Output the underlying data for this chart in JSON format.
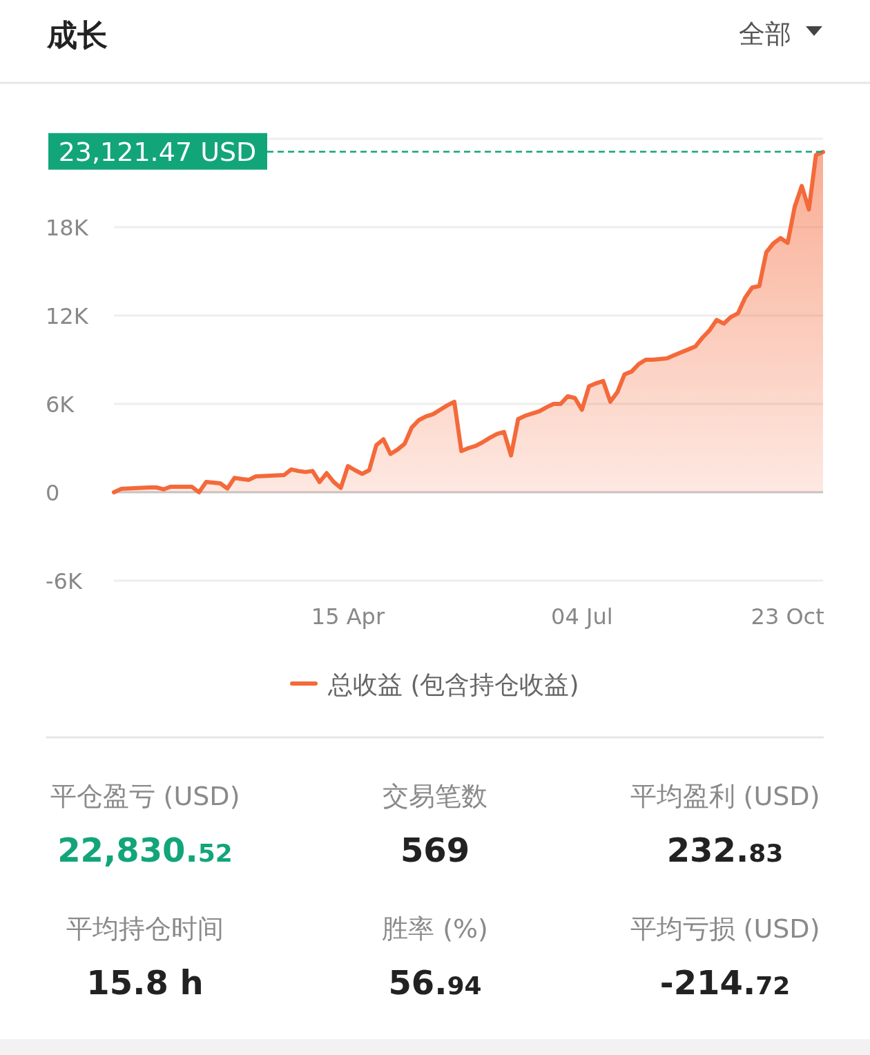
{
  "chart_data": [
    {
      "type": "area",
      "title": "成长",
      "annotations": [
        "全部"
      ],
      "categories": [
        null,
        null,
        null,
        null,
        null,
        null,
        null,
        null,
        null,
        null,
        null,
        null,
        null,
        null,
        null,
        null,
        null,
        null,
        null,
        null,
        null,
        null,
        null,
        null,
        null,
        null,
        null,
        null,
        null,
        null,
        null,
        null,
        null,
        "15 Apr",
        null,
        null,
        null,
        null,
        null,
        null,
        null,
        null,
        null,
        null,
        null,
        null,
        null,
        null,
        null,
        null,
        null,
        null,
        null,
        null,
        null,
        null,
        null,
        null,
        null,
        null,
        null,
        null,
        null,
        null,
        null,
        null,
        "04 Jul",
        null,
        null,
        null,
        null,
        null,
        null,
        null,
        null,
        null,
        null,
        null,
        null,
        null,
        null,
        null,
        null,
        null,
        null,
        null,
        null,
        null,
        null,
        null,
        null,
        null,
        null,
        null,
        null,
        "23 Oct",
        null,
        null,
        null,
        null,
        null
      ],
      "series": [
        {
          "name": "总收益 (包含持仓收益)",
          "color": "#f4693a",
          "values": [
            0,
            230,
            260,
            280,
            300,
            330,
            330,
            200,
            380,
            380,
            380,
            370,
            0,
            700,
            660,
            610,
            250,
            980,
            900,
            840,
            1080,
            1100,
            1130,
            1150,
            1170,
            1550,
            1450,
            1380,
            1450,
            700,
            1300,
            700,
            300,
            1780,
            1500,
            1250,
            1500,
            3200,
            3600,
            2600,
            2900,
            3300,
            4400,
            4900,
            5150,
            5300,
            5600,
            5900,
            6150,
            2800,
            3000,
            3150,
            3400,
            3700,
            3950,
            4100,
            2500,
            4970,
            5200,
            5350,
            5500,
            5770,
            6000,
            6000,
            6520,
            6400,
            5600,
            7200,
            7400,
            7550,
            6150,
            6800,
            8000,
            8200,
            8700,
            9000,
            9000,
            9050,
            9100,
            9300,
            9500,
            9700,
            9900,
            10500,
            11000,
            11700,
            11450,
            11900,
            12150,
            13200,
            13900,
            14000,
            16300,
            16900,
            17260,
            16930,
            19370,
            20800,
            19200,
            22900,
            23100
          ]
        }
      ],
      "ylim": [
        -6000,
        24000
      ],
      "yticks": [
        {
          "value": -6000,
          "label": "-6K"
        },
        {
          "value": 0,
          "label": "0"
        },
        {
          "value": 6000,
          "label": "6K"
        },
        {
          "value": 12000,
          "label": "12K"
        },
        {
          "value": 18000,
          "label": "18K"
        },
        {
          "value": 24000,
          "label": null
        }
      ],
      "grid": "y",
      "legend": "bottom",
      "ref_lines": [
        {
          "axis": "y",
          "value": 23121.47,
          "label": "23,121.47 USD",
          "color": "#12a57a",
          "line_style": "dashed"
        }
      ]
    },
    {
      "type": "other",
      "annotations": [
        "平仓盈亏 (USD)",
        "22,830.52",
        "交易笔数",
        "569",
        "平均盈利 (USD)",
        "232.83",
        "平均持仓时间",
        "15.8 h",
        "胜率 (%)",
        "56.94",
        "平均亏损 (USD)",
        "-214.72"
      ]
    }
  ]
}
